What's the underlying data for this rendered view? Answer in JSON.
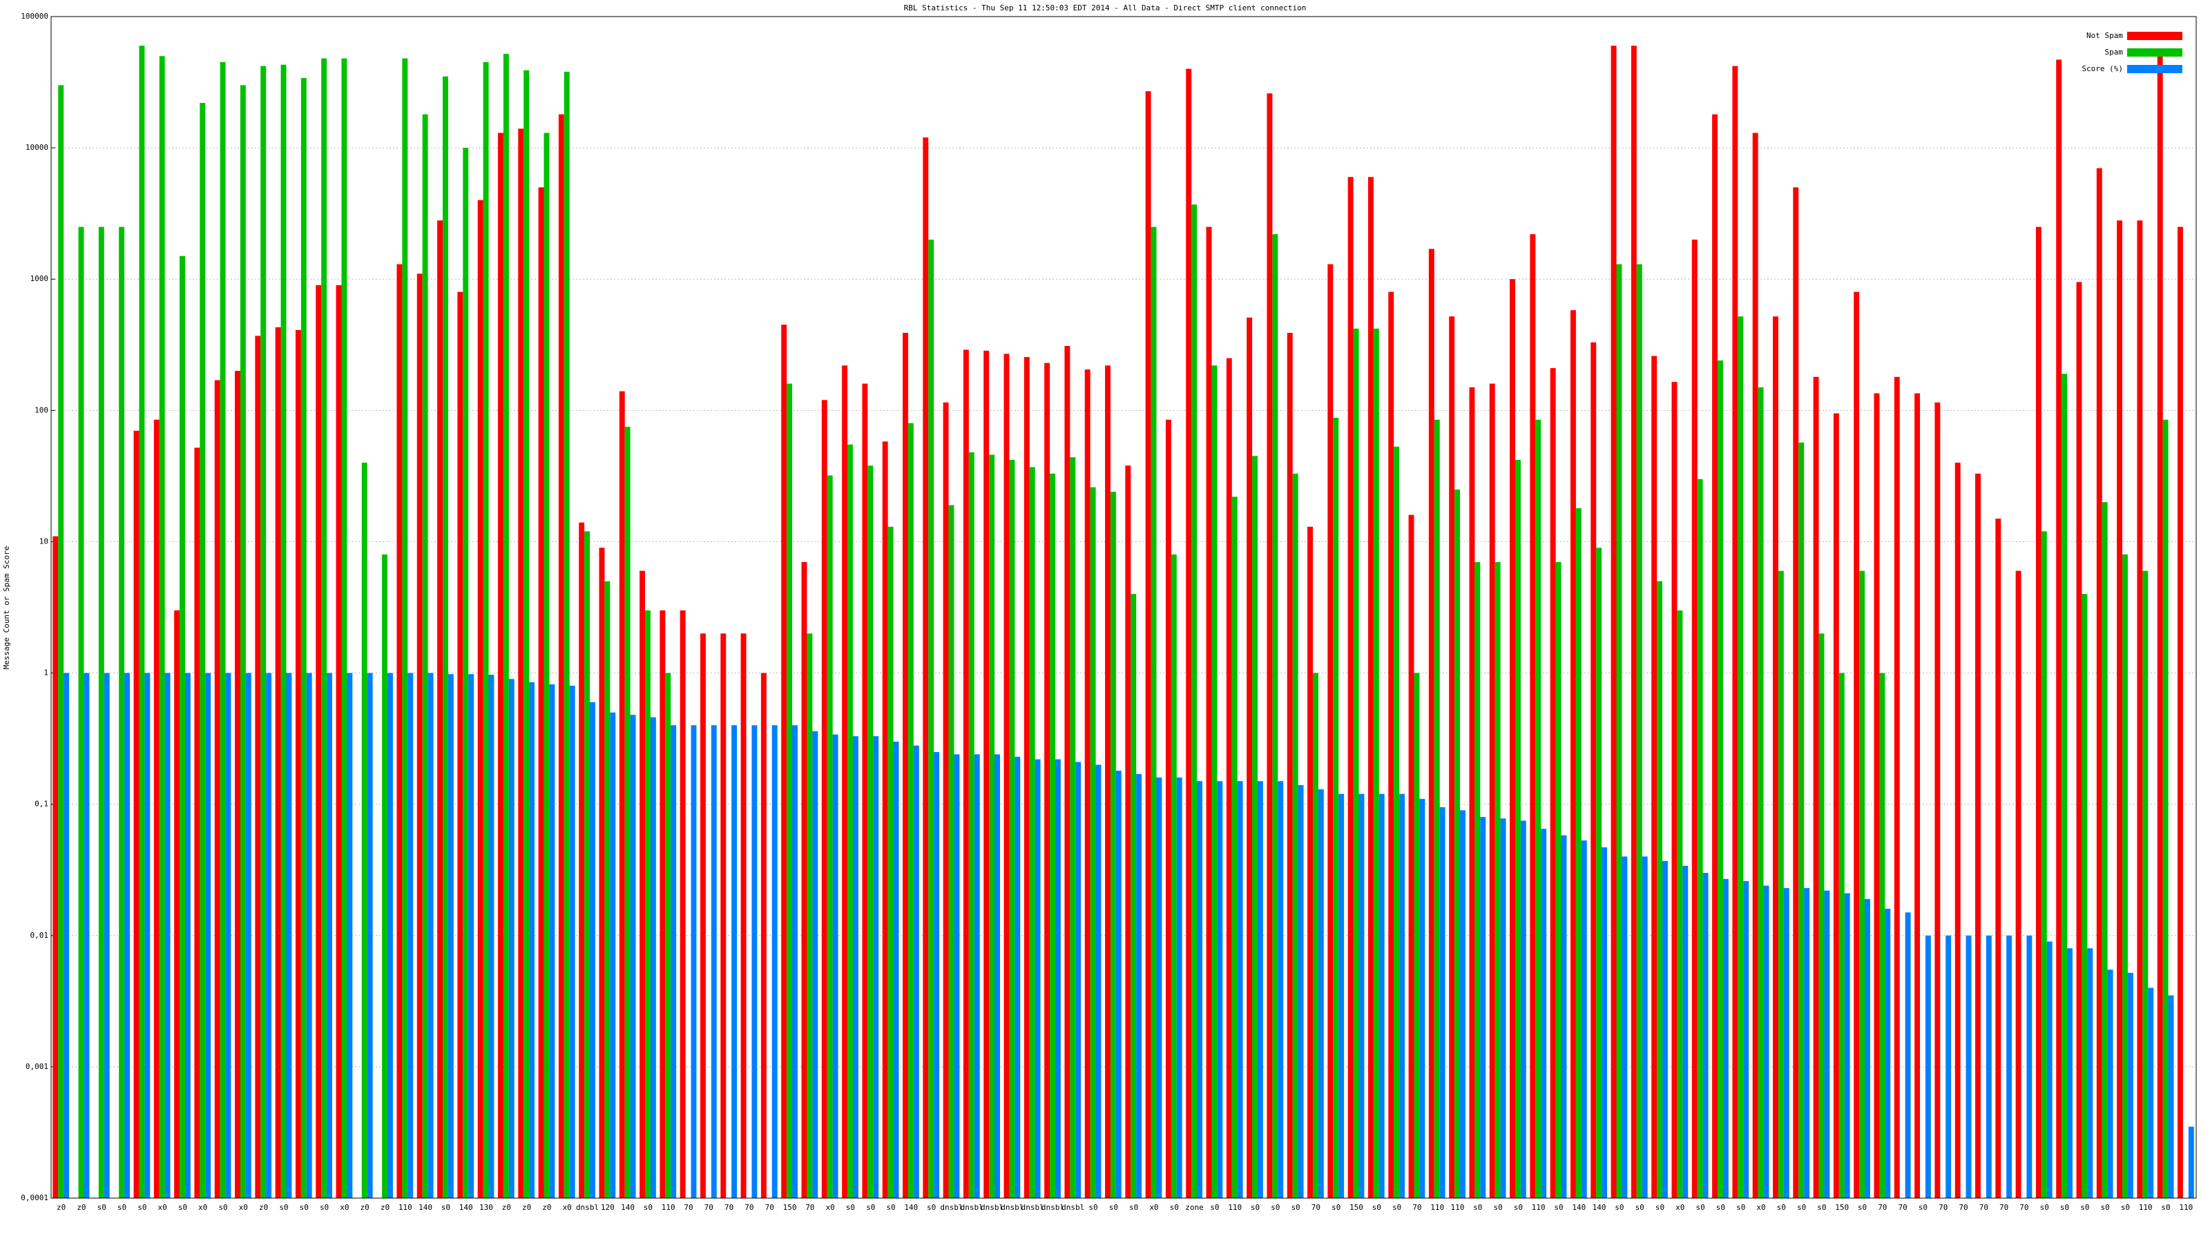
{
  "chart_data": {
    "type": "bar",
    "title": "RBL Statistics - Thu Sep 11 12:50:03 EDT 2014 - All Data - Direct SMTP client connection",
    "y_label": "Message Count or Spam Score",
    "log_scale": true,
    "grid": true,
    "legend": "upper right",
    "ylim": [
      0.0001,
      100000
    ],
    "yticks": [
      {
        "value": 0.0001,
        "label": "0,0001"
      },
      {
        "value": 0.001,
        "label": "0,001"
      },
      {
        "value": 0.01,
        "label": "0,01"
      },
      {
        "value": 0.1,
        "label": "0,1"
      },
      1,
      10,
      100,
      1000,
      10000,
      100000
    ],
    "categories": [
      "z0",
      "z0",
      "s0",
      "s0",
      "s0",
      "x0",
      "s0",
      "x0",
      "s0",
      "x0",
      "z0",
      "s0",
      "s0",
      "s0",
      "x0",
      "z0",
      "z0",
      "110",
      "140",
      "s0",
      "140",
      "130",
      "z0",
      "z0",
      "z0",
      "x0",
      "dnsbl",
      "120",
      "140",
      "s0",
      "110",
      "70",
      "70",
      "70",
      "70",
      "70",
      "150",
      "70",
      "x0",
      "s0",
      "s0",
      "s0",
      "140",
      "s0",
      "dnsbl",
      "dnsbl",
      "dnsbl",
      "dnsbl",
      "dnsbl",
      "dnsbl",
      "dnsbl",
      "s0",
      "s0",
      "s0",
      "x0",
      "s0",
      "zone",
      "s0",
      "110",
      "s0",
      "s0",
      "s0",
      "70",
      "s0",
      "150",
      "s0",
      "s0",
      "70",
      "110",
      "110",
      "s0",
      "s0",
      "s0",
      "110",
      "s0",
      "140",
      "140",
      "s0",
      "s0",
      "s0",
      "x0",
      "s0",
      "s0",
      "s0",
      "x0",
      "s0",
      "s0",
      "s0",
      "150",
      "s0",
      "70",
      "70",
      "s0",
      "70",
      "70",
      "70",
      "70",
      "70",
      "s0",
      "s0",
      "s0",
      "s0",
      "s0",
      "110",
      "s0",
      "110"
    ],
    "series": [
      {
        "name": "Not Spam",
        "color": "#ff0000",
        "values": [
          11,
          null,
          null,
          null,
          70,
          85,
          3,
          52,
          170,
          200,
          370,
          430,
          410,
          900,
          900,
          null,
          null,
          1300,
          1100,
          2800,
          800,
          4000,
          13000,
          14000,
          5000,
          18000,
          14,
          9,
          140,
          6,
          3,
          3,
          2,
          2,
          2,
          1,
          450,
          7,
          120,
          220,
          160,
          58,
          390,
          12000,
          115,
          290,
          285,
          270,
          255,
          230,
          310,
          205,
          220,
          38,
          27000,
          85,
          40000,
          2500,
          250,
          510,
          26000,
          390,
          13,
          1300,
          6000,
          6000,
          800,
          16,
          1700,
          520,
          150,
          160,
          1000,
          2200,
          210,
          580,
          330,
          60000,
          60000,
          260,
          165,
          2000,
          18000,
          42000,
          13000,
          520,
          5000,
          180,
          95,
          800,
          135,
          180,
          135,
          115,
          40,
          33,
          15,
          6,
          2500,
          47000,
          950,
          7000,
          2800,
          2800,
          55000,
          2500
        ]
      },
      {
        "name": "Spam",
        "color": "#00c000",
        "values": [
          30000,
          2500,
          2500,
          2500,
          60000,
          50000,
          1500,
          22000,
          45000,
          30000,
          42000,
          43000,
          34000,
          48000,
          48000,
          40,
          8,
          48000,
          18000,
          35000,
          10000,
          45000,
          52000,
          39000,
          13000,
          38000,
          12,
          5,
          75,
          3,
          1,
          null,
          null,
          null,
          null,
          null,
          160,
          2,
          32,
          55,
          38,
          13,
          80,
          2000,
          19,
          48,
          46,
          42,
          37,
          33,
          44,
          26,
          24,
          4,
          2500,
          8,
          3700,
          220,
          22,
          45,
          2200,
          33,
          1,
          88,
          420,
          420,
          53,
          1,
          85,
          25,
          7,
          7,
          42,
          85,
          7,
          18,
          9,
          1300,
          1300,
          5,
          3,
          30,
          240,
          520,
          150,
          6,
          57,
          2,
          1,
          6,
          1,
          null,
          null,
          null,
          null,
          null,
          null,
          null,
          12,
          190,
          4,
          20,
          8,
          6,
          85,
          null
        ]
      },
      {
        "name": "Score (%)",
        "color": "#0080ff",
        "values": [
          1,
          1,
          1,
          1,
          1,
          1,
          1,
          1,
          1,
          1,
          1,
          1,
          1,
          1,
          1,
          1,
          1,
          1,
          1,
          0.98,
          0.98,
          0.97,
          0.9,
          0.85,
          0.82,
          0.8,
          0.6,
          0.5,
          0.48,
          0.46,
          0.4,
          0.4,
          0.4,
          0.4,
          0.4,
          0.4,
          0.4,
          0.36,
          0.34,
          0.33,
          0.33,
          0.3,
          0.28,
          0.25,
          0.24,
          0.24,
          0.24,
          0.23,
          0.22,
          0.22,
          0.21,
          0.2,
          0.18,
          0.17,
          0.16,
          0.16,
          0.15,
          0.15,
          0.15,
          0.15,
          0.15,
          0.14,
          0.13,
          0.12,
          0.12,
          0.12,
          0.12,
          0.11,
          0.095,
          0.09,
          0.08,
          0.078,
          0.075,
          0.065,
          0.058,
          0.053,
          0.047,
          0.04,
          0.04,
          0.037,
          0.034,
          0.03,
          0.027,
          0.026,
          0.024,
          0.023,
          0.023,
          0.022,
          0.021,
          0.019,
          0.016,
          0.015,
          0.01,
          0.01,
          0.01,
          0.01,
          0.01,
          0.01,
          0.009,
          0.008,
          0.008,
          0.0055,
          0.0052,
          0.004,
          0.0035,
          0.00035
        ]
      }
    ]
  }
}
